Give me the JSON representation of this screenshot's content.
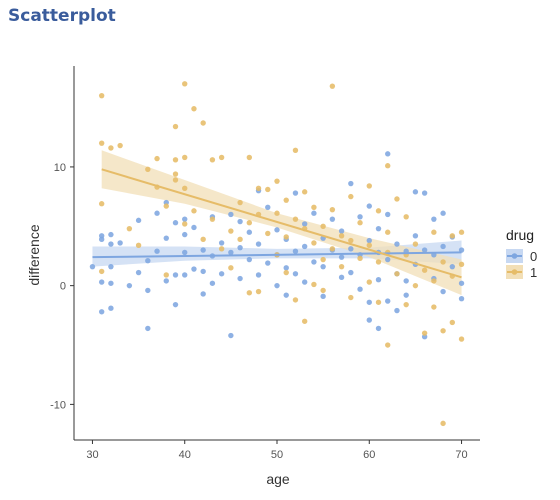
{
  "panel": {
    "heading": "Scatterplot"
  },
  "colors": {
    "drug0": "#7ea6e0",
    "drug1": "#e6bc68",
    "band0": "#c7d8f2",
    "band1": "#f2dfb7",
    "axis": "#333333"
  },
  "chart_data": {
    "type": "scatter",
    "title": "",
    "xlabel": "age",
    "ylabel": "difference",
    "xlim": [
      28,
      72
    ],
    "ylim": [
      -13,
      18.5
    ],
    "x_ticks": [
      30,
      40,
      50,
      60,
      70
    ],
    "y_ticks": [
      -10,
      0,
      10
    ],
    "grid": false,
    "legend": {
      "title": "drug",
      "position": "right",
      "entries": [
        "0",
        "1"
      ]
    },
    "series": [
      {
        "name": "0",
        "color": "#7ea6e0",
        "trend": {
          "x": [
            30,
            70
          ],
          "y": [
            2.4,
            2.8
          ],
          "band": [
            [
              30,
              1.6,
              3.3
            ],
            [
              40,
              2.1,
              3.3
            ],
            [
              50,
              2.3,
              3.1
            ],
            [
              60,
              2.3,
              3.2
            ],
            [
              70,
              1.8,
              3.8
            ]
          ]
        },
        "points": [
          [
            30,
            1.6
          ],
          [
            31,
            4.2
          ],
          [
            31,
            3.9
          ],
          [
            31,
            -2.2
          ],
          [
            31,
            0.3
          ],
          [
            32,
            4.3
          ],
          [
            32,
            3.5
          ],
          [
            32,
            1.6
          ],
          [
            32,
            0.2
          ],
          [
            32,
            -1.9
          ],
          [
            33,
            3.6
          ],
          [
            34,
            0.0
          ],
          [
            35,
            5.5
          ],
          [
            35,
            1.1
          ],
          [
            36,
            -3.6
          ],
          [
            36,
            2.1
          ],
          [
            36,
            -0.4
          ],
          [
            37,
            6.1
          ],
          [
            37,
            2.9
          ],
          [
            38,
            4.0
          ],
          [
            38,
            0.4
          ],
          [
            38,
            7.0
          ],
          [
            39,
            5.3
          ],
          [
            39,
            0.9
          ],
          [
            39,
            -1.6
          ],
          [
            40,
            4.3
          ],
          [
            40,
            2.8
          ],
          [
            40,
            0.9
          ],
          [
            40,
            5.6
          ],
          [
            41,
            4.9
          ],
          [
            41,
            1.4
          ],
          [
            42,
            1.2
          ],
          [
            42,
            3.0
          ],
          [
            42,
            -0.7
          ],
          [
            43,
            5.8
          ],
          [
            43,
            2.5
          ],
          [
            43,
            0.2
          ],
          [
            44,
            3.6
          ],
          [
            44,
            1.0
          ],
          [
            45,
            -4.2
          ],
          [
            45,
            6.0
          ],
          [
            45,
            2.8
          ],
          [
            46,
            3.2
          ],
          [
            46,
            5.4
          ],
          [
            46,
            0.6
          ],
          [
            47,
            2.2
          ],
          [
            47,
            4.5
          ],
          [
            48,
            8.0
          ],
          [
            48,
            3.5
          ],
          [
            48,
            0.9
          ],
          [
            49,
            1.9
          ],
          [
            49,
            6.6
          ],
          [
            50,
            2.6
          ],
          [
            50,
            4.7
          ],
          [
            50,
            0.0
          ],
          [
            51,
            1.5
          ],
          [
            51,
            3.9
          ],
          [
            51,
            -0.8
          ],
          [
            52,
            7.8
          ],
          [
            52,
            2.9
          ],
          [
            52,
            1.0
          ],
          [
            53,
            5.2
          ],
          [
            53,
            3.3
          ],
          [
            53,
            0.3
          ],
          [
            54,
            2.0
          ],
          [
            54,
            6.1
          ],
          [
            55,
            4.0
          ],
          [
            55,
            1.6
          ],
          [
            55,
            -0.9
          ],
          [
            56,
            3.0
          ],
          [
            56,
            5.6
          ],
          [
            57,
            2.4
          ],
          [
            57,
            4.6
          ],
          [
            57,
            0.7
          ],
          [
            58,
            8.6
          ],
          [
            58,
            3.1
          ],
          [
            58,
            1.1
          ],
          [
            59,
            5.8
          ],
          [
            59,
            2.6
          ],
          [
            59,
            -0.3
          ],
          [
            60,
            6.7
          ],
          [
            60,
            3.8
          ],
          [
            60,
            -1.4
          ],
          [
            60,
            -2.9
          ],
          [
            61,
            2.8
          ],
          [
            61,
            4.8
          ],
          [
            61,
            -3.6
          ],
          [
            61,
            0.5
          ],
          [
            62,
            11.1
          ],
          [
            62,
            6.0
          ],
          [
            62,
            2.2
          ],
          [
            62,
            -1.3
          ],
          [
            63,
            3.5
          ],
          [
            63,
            -2.1
          ],
          [
            63,
            1.0
          ],
          [
            64,
            2.9
          ],
          [
            64,
            0.4
          ],
          [
            64,
            -0.8
          ],
          [
            65,
            7.9
          ],
          [
            65,
            4.2
          ],
          [
            65,
            1.8
          ],
          [
            66,
            7.8
          ],
          [
            66,
            3.0
          ],
          [
            66,
            -4.3
          ],
          [
            67,
            5.6
          ],
          [
            67,
            2.6
          ],
          [
            67,
            0.6
          ],
          [
            68,
            6.1
          ],
          [
            68,
            3.3
          ],
          [
            68,
            -0.5
          ],
          [
            69,
            4.1
          ],
          [
            69,
            1.6
          ],
          [
            70,
            3.0
          ],
          [
            70,
            -1.1
          ],
          [
            70,
            0.2
          ]
        ]
      },
      {
        "name": "1",
        "color": "#e6bc68",
        "trend": {
          "x": [
            31,
            70
          ],
          "y": [
            9.8,
            0.7
          ],
          "band": [
            [
              31,
              8.2,
              11.4
            ],
            [
              40,
              6.9,
              8.9
            ],
            [
              50,
              4.9,
              6.1
            ],
            [
              60,
              2.4,
              4.0
            ],
            [
              70,
              -0.8,
              2.2
            ]
          ]
        },
        "points": [
          [
            31,
            16.0
          ],
          [
            31,
            12.0
          ],
          [
            31,
            6.9
          ],
          [
            31,
            1.2
          ],
          [
            32,
            11.6
          ],
          [
            33,
            11.8
          ],
          [
            34,
            4.8
          ],
          [
            35,
            3.4
          ],
          [
            36,
            9.8
          ],
          [
            37,
            10.7
          ],
          [
            37,
            8.3
          ],
          [
            38,
            6.7
          ],
          [
            38,
            0.9
          ],
          [
            39,
            10.6
          ],
          [
            39,
            9.4
          ],
          [
            39,
            13.4
          ],
          [
            39,
            8.9
          ],
          [
            40,
            17.0
          ],
          [
            40,
            10.8
          ],
          [
            40,
            8.2
          ],
          [
            40,
            5.2
          ],
          [
            41,
            14.9
          ],
          [
            41,
            6.3
          ],
          [
            42,
            13.7
          ],
          [
            42,
            3.9
          ],
          [
            43,
            10.6
          ],
          [
            43,
            5.6
          ],
          [
            44,
            10.8
          ],
          [
            44,
            3.1
          ],
          [
            45,
            4.6
          ],
          [
            45,
            1.5
          ],
          [
            46,
            7.0
          ],
          [
            46,
            3.9
          ],
          [
            47,
            10.8
          ],
          [
            47,
            5.3
          ],
          [
            47,
            -0.6
          ],
          [
            48,
            8.2
          ],
          [
            48,
            6.0
          ],
          [
            48,
            -0.5
          ],
          [
            49,
            8.1
          ],
          [
            49,
            4.4
          ],
          [
            50,
            8.8
          ],
          [
            50,
            6.1
          ],
          [
            50,
            2.6
          ],
          [
            51,
            7.2
          ],
          [
            51,
            4.1
          ],
          [
            51,
            1.1
          ],
          [
            52,
            11.4
          ],
          [
            52,
            5.6
          ],
          [
            52,
            -1.2
          ],
          [
            53,
            7.9
          ],
          [
            53,
            4.8
          ],
          [
            53,
            -3.0
          ],
          [
            54,
            6.6
          ],
          [
            54,
            3.6
          ],
          [
            54,
            0.1
          ],
          [
            55,
            5.0
          ],
          [
            55,
            2.2
          ],
          [
            55,
            -0.4
          ],
          [
            56,
            16.8
          ],
          [
            56,
            6.4
          ],
          [
            56,
            3.1
          ],
          [
            57,
            4.2
          ],
          [
            57,
            1.6
          ],
          [
            58,
            7.5
          ],
          [
            58,
            3.8
          ],
          [
            58,
            -1.0
          ],
          [
            59,
            5.3
          ],
          [
            59,
            2.3
          ],
          [
            60,
            8.4
          ],
          [
            60,
            3.4
          ],
          [
            60,
            0.3
          ],
          [
            61,
            6.3
          ],
          [
            61,
            2.0
          ],
          [
            61,
            -1.4
          ],
          [
            62,
            10.1
          ],
          [
            62,
            4.5
          ],
          [
            62,
            2.8
          ],
          [
            62,
            -5.0
          ],
          [
            63,
            7.3
          ],
          [
            63,
            1.0
          ],
          [
            64,
            5.8
          ],
          [
            64,
            2.6
          ],
          [
            64,
            -1.6
          ],
          [
            65,
            3.5
          ],
          [
            65,
            0.0
          ],
          [
            66,
            1.3
          ],
          [
            66,
            -4.0
          ],
          [
            67,
            4.5
          ],
          [
            67,
            0.4
          ],
          [
            67,
            -1.8
          ],
          [
            68,
            2.0
          ],
          [
            68,
            -3.8
          ],
          [
            68,
            -11.6
          ],
          [
            69,
            4.2
          ],
          [
            69,
            0.8
          ],
          [
            69,
            -3.1
          ],
          [
            70,
            4.5
          ],
          [
            70,
            1.8
          ],
          [
            70,
            -4.5
          ]
        ]
      }
    ]
  }
}
